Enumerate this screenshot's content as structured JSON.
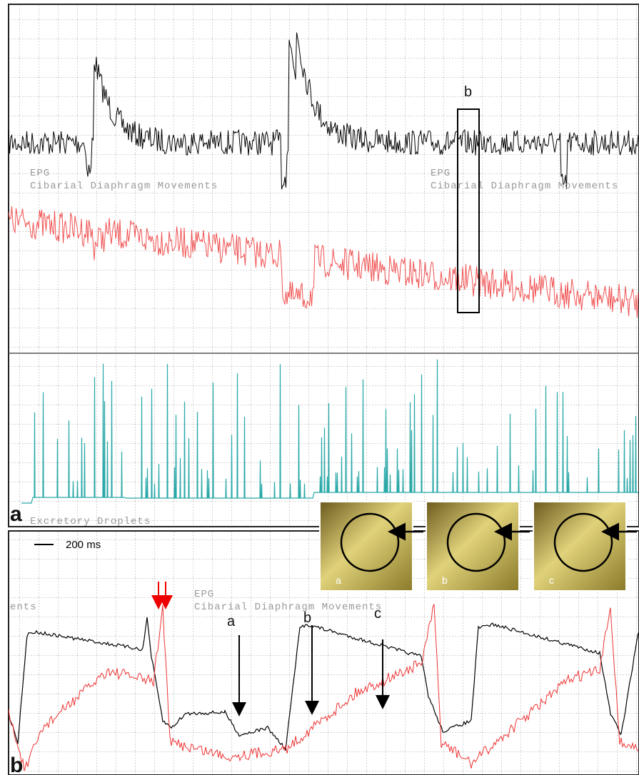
{
  "panel_a": {
    "label": "a",
    "box_label": "b",
    "channels": [
      {
        "channel": "EPG",
        "name": "Cibarial Diaphragm Movements"
      },
      {
        "channel": "EPG",
        "name": "Cibarial Diaphragm Movements"
      }
    ],
    "droplets": "Excretory Droplets"
  },
  "panel_b": {
    "label": "b",
    "scale_bar": "200 ms",
    "insets": [
      "a",
      "b",
      "c"
    ],
    "channel": "EPG",
    "cut_label": "ents",
    "name": "Cibarial Diaphragm Movements",
    "arrows": [
      "a",
      "b",
      "c"
    ]
  }
}
